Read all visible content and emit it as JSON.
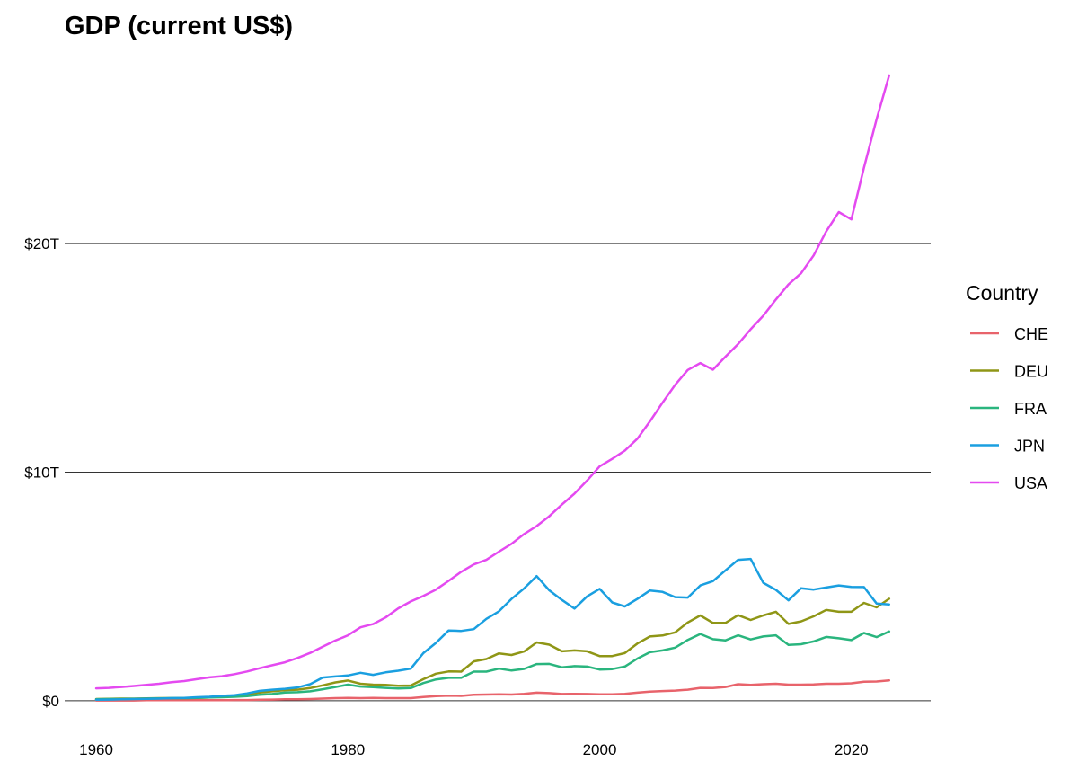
{
  "chart_data": {
    "type": "line",
    "title": "GDP (current US$)",
    "xlabel": "",
    "ylabel": "",
    "xlim": [
      1957.5,
      2026.3
    ],
    "ylim": [
      -0.4,
      28.3
    ],
    "x_ticks": [
      1960,
      1980,
      2000,
      2020
    ],
    "x_tick_labels": [
      "1960",
      "1980",
      "2000",
      "2020"
    ],
    "y_ticks": [
      0,
      10,
      20
    ],
    "y_tick_labels": [
      "$0",
      "$10T",
      "$20T"
    ],
    "y_unit": "trillions of US$",
    "grid": "horizontal major lines",
    "legend": {
      "title": "Country",
      "position": "right"
    },
    "x": [
      1960,
      1961,
      1962,
      1963,
      1964,
      1965,
      1966,
      1967,
      1968,
      1969,
      1970,
      1971,
      1972,
      1973,
      1974,
      1975,
      1976,
      1977,
      1978,
      1979,
      1980,
      1981,
      1982,
      1983,
      1984,
      1985,
      1986,
      1987,
      1988,
      1989,
      1990,
      1991,
      1992,
      1993,
      1994,
      1995,
      1996,
      1997,
      1998,
      1999,
      2000,
      2001,
      2002,
      2003,
      2004,
      2005,
      2006,
      2007,
      2008,
      2009,
      2010,
      2011,
      2012,
      2013,
      2014,
      2015,
      2016,
      2017,
      2018,
      2019,
      2020,
      2021,
      2022,
      2023
    ],
    "series": [
      {
        "name": "CHE",
        "color": "#E8636B",
        "values": [
          0.01,
          0.01,
          0.01,
          0.01,
          0.02,
          0.02,
          0.02,
          0.02,
          0.02,
          0.02,
          0.02,
          0.03,
          0.03,
          0.04,
          0.05,
          0.06,
          0.06,
          0.07,
          0.09,
          0.11,
          0.12,
          0.11,
          0.12,
          0.11,
          0.11,
          0.11,
          0.16,
          0.2,
          0.22,
          0.21,
          0.26,
          0.27,
          0.28,
          0.27,
          0.3,
          0.35,
          0.33,
          0.29,
          0.3,
          0.29,
          0.28,
          0.28,
          0.3,
          0.35,
          0.4,
          0.42,
          0.44,
          0.48,
          0.56,
          0.55,
          0.6,
          0.72,
          0.69,
          0.72,
          0.74,
          0.7,
          0.7,
          0.71,
          0.74,
          0.74,
          0.76,
          0.83,
          0.84,
          0.89
        ]
      },
      {
        "name": "DEU",
        "color": "#8F9616",
        "values": [
          0.07,
          0.08,
          0.09,
          0.09,
          0.1,
          0.11,
          0.11,
          0.11,
          0.12,
          0.14,
          0.19,
          0.22,
          0.26,
          0.36,
          0.41,
          0.46,
          0.48,
          0.55,
          0.67,
          0.8,
          0.88,
          0.74,
          0.7,
          0.69,
          0.65,
          0.66,
          0.94,
          1.18,
          1.28,
          1.27,
          1.72,
          1.82,
          2.07,
          2.0,
          2.15,
          2.55,
          2.45,
          2.16,
          2.2,
          2.16,
          1.95,
          1.95,
          2.08,
          2.5,
          2.81,
          2.85,
          2.99,
          3.42,
          3.73,
          3.4,
          3.4,
          3.74,
          3.53,
          3.73,
          3.89,
          3.36,
          3.47,
          3.69,
          3.97,
          3.89,
          3.89,
          4.28,
          4.08,
          4.46
        ]
      },
      {
        "name": "FRA",
        "color": "#2AB57E",
        "values": [
          0.06,
          0.07,
          0.07,
          0.08,
          0.09,
          0.1,
          0.11,
          0.11,
          0.12,
          0.14,
          0.15,
          0.17,
          0.2,
          0.26,
          0.29,
          0.36,
          0.37,
          0.41,
          0.5,
          0.6,
          0.7,
          0.62,
          0.59,
          0.56,
          0.53,
          0.55,
          0.77,
          0.93,
          1.0,
          1.0,
          1.27,
          1.27,
          1.4,
          1.32,
          1.39,
          1.6,
          1.61,
          1.46,
          1.51,
          1.49,
          1.36,
          1.38,
          1.49,
          1.84,
          2.12,
          2.2,
          2.32,
          2.66,
          2.92,
          2.69,
          2.64,
          2.86,
          2.68,
          2.81,
          2.86,
          2.44,
          2.47,
          2.59,
          2.79,
          2.73,
          2.65,
          2.96,
          2.78,
          3.03
        ]
      },
      {
        "name": "JPN",
        "color": "#1A9FE0",
        "values": [
          0.04,
          0.05,
          0.06,
          0.07,
          0.08,
          0.09,
          0.11,
          0.12,
          0.15,
          0.17,
          0.21,
          0.24,
          0.32,
          0.43,
          0.48,
          0.52,
          0.58,
          0.72,
          1.01,
          1.06,
          1.1,
          1.22,
          1.13,
          1.24,
          1.31,
          1.4,
          2.08,
          2.53,
          3.07,
          3.05,
          3.13,
          3.58,
          3.91,
          4.45,
          4.91,
          5.45,
          4.83,
          4.41,
          4.03,
          4.56,
          4.89,
          4.3,
          4.12,
          4.45,
          4.82,
          4.76,
          4.53,
          4.51,
          5.04,
          5.23,
          5.7,
          6.16,
          6.2,
          5.16,
          4.85,
          4.39,
          4.92,
          4.86,
          4.95,
          5.04,
          4.98,
          4.97,
          4.25,
          4.21
        ]
      },
      {
        "name": "USA",
        "color": "#E44AF0",
        "values": [
          0.54,
          0.56,
          0.6,
          0.64,
          0.69,
          0.74,
          0.81,
          0.86,
          0.94,
          1.02,
          1.07,
          1.16,
          1.28,
          1.42,
          1.55,
          1.68,
          1.87,
          2.09,
          2.36,
          2.63,
          2.86,
          3.21,
          3.35,
          3.64,
          4.04,
          4.34,
          4.58,
          4.86,
          5.24,
          5.64,
          5.96,
          6.16,
          6.52,
          6.86,
          7.29,
          7.64,
          8.07,
          8.58,
          9.06,
          9.63,
          10.25,
          10.58,
          10.94,
          11.46,
          12.22,
          13.04,
          13.82,
          14.47,
          14.77,
          14.48,
          15.05,
          15.6,
          16.25,
          16.84,
          17.55,
          18.21,
          18.7,
          19.48,
          20.53,
          21.38,
          21.06,
          23.32,
          25.44,
          27.36
        ]
      }
    ]
  }
}
